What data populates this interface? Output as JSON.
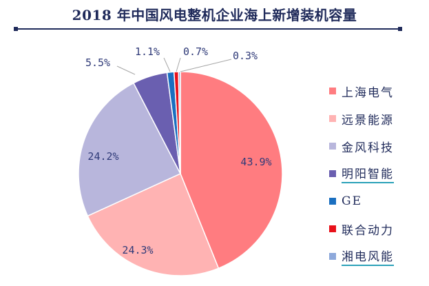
{
  "chart_data": {
    "type": "pie",
    "title": "2018 年中国风电整机企业海上新增装机容量",
    "categories": [
      "上海电气",
      "远景能源",
      "金风科技",
      "明阳智能",
      "GE",
      "联合动力",
      "湘电风能"
    ],
    "values": [
      43.9,
      24.3,
      24.2,
      5.5,
      1.1,
      0.7,
      0.3
    ],
    "labels": [
      "43.9%",
      "24.3%",
      "24.2%",
      "5.5%",
      "1.1%",
      "0.7%",
      "0.3%"
    ],
    "colors": [
      "#ff7c80",
      "#ffb3b3",
      "#b8b6dc",
      "#6a5fb0",
      "#1a6fc0",
      "#e8111a",
      "#8ea9db"
    ],
    "legend_position": "right",
    "start_angle_deg": 0,
    "direction": "clockwise"
  }
}
